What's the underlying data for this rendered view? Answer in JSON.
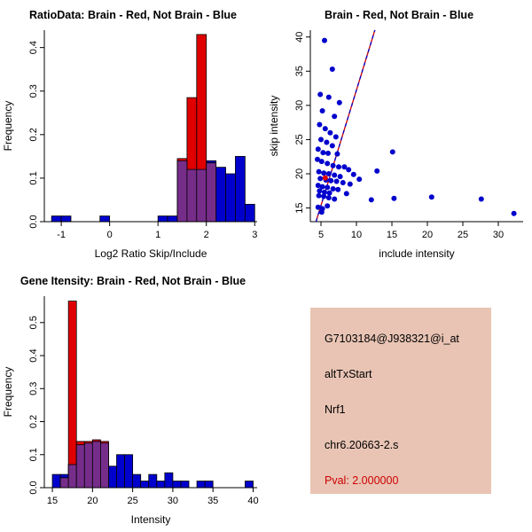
{
  "figure_bg": "#ffffff",
  "colors": {
    "blue": "#0000cd",
    "red": "#e00000",
    "overlap": "#762d8a",
    "line_red": "#cc0000",
    "line_blue": "#0000cd"
  },
  "chart_data": [
    {
      "type": "bar",
      "title": "RatioData: Brain - Red, Not Brain - Blue",
      "xlabel": "Log2 Ratio Skip/Include",
      "ylabel": "Frequency",
      "xlim": [
        -1.35,
        3.05
      ],
      "ylim": [
        0,
        0.44
      ],
      "xtick_vals": [
        -1,
        0,
        1,
        2,
        3
      ],
      "xtick_labels": [
        "-1",
        "0",
        "1",
        "2",
        "3"
      ],
      "ytick_vals": [
        0,
        0.1,
        0.2,
        0.3,
        0.4
      ],
      "ytick_labels": [
        "0.0",
        "0.1",
        "0.2",
        "0.3",
        "0.4"
      ],
      "bins_start": -1.2,
      "bin_width": 0.2,
      "series": [
        {
          "name": "Not Brain",
          "color": "#0000cd",
          "values": [
            0.013,
            0.013,
            0,
            0,
            0,
            0.013,
            0,
            0,
            0,
            0,
            0,
            0.013,
            0.013,
            0.14,
            0.12,
            0.12,
            0.14,
            0.125,
            0.11,
            0.15,
            0.04
          ]
        },
        {
          "name": "Brain",
          "color": "#e00000",
          "values": [
            0,
            0,
            0,
            0,
            0,
            0,
            0,
            0,
            0,
            0,
            0,
            0,
            0,
            0.145,
            0.285,
            0.43,
            0.135,
            0,
            0,
            0,
            0
          ]
        }
      ],
      "overlap_color": "#762d8a",
      "legend": "Brain - Red, Not Brain - Blue",
      "grid": false
    },
    {
      "type": "scatter",
      "title": "Brain - Red, Not Brain - Blue",
      "xlabel": "include intensity",
      "ylabel": "skip intensity",
      "xlim": [
        3.5,
        33.5
      ],
      "ylim": [
        13,
        41
      ],
      "xtick_vals": [
        5,
        10,
        15,
        20,
        25,
        30
      ],
      "xtick_labels": [
        "5",
        "10",
        "15",
        "20",
        "25",
        "30"
      ],
      "ytick_vals": [
        15,
        20,
        25,
        30,
        35,
        40
      ],
      "ytick_labels": [
        "15",
        "20",
        "25",
        "30",
        "35",
        "40"
      ],
      "point_color": "#0000cd",
      "red_point_color": "#e00000",
      "points": [
        [
          5.5,
          39.5
        ],
        [
          6.6,
          35.3
        ],
        [
          4.9,
          31.6
        ],
        [
          6.1,
          31.2
        ],
        [
          7.6,
          30.4
        ],
        [
          5.2,
          29.2
        ],
        [
          6.9,
          28.4
        ],
        [
          4.8,
          27.2
        ],
        [
          5.6,
          26.6
        ],
        [
          6.3,
          26.0
        ],
        [
          7.1,
          25.4
        ],
        [
          5.0,
          25.0
        ],
        [
          5.8,
          24.6
        ],
        [
          6.6,
          24.1
        ],
        [
          4.6,
          23.6
        ],
        [
          5.3,
          23.1
        ],
        [
          6.0,
          23.0
        ],
        [
          7.3,
          22.9
        ],
        [
          15.1,
          23.2
        ],
        [
          4.5,
          22.1
        ],
        [
          5.1,
          21.8
        ],
        [
          5.9,
          21.5
        ],
        [
          6.7,
          21.2
        ],
        [
          7.5,
          21.0
        ],
        [
          8.3,
          21.0
        ],
        [
          12.9,
          20.4
        ],
        [
          4.7,
          20.3
        ],
        [
          5.4,
          20.1
        ],
        [
          6.1,
          20.0
        ],
        [
          6.9,
          19.8
        ],
        [
          7.7,
          19.6
        ],
        [
          9.6,
          19.9
        ],
        [
          8.9,
          20.6
        ],
        [
          4.9,
          19.3
        ],
        [
          5.7,
          19.1
        ],
        [
          6.4,
          19.0
        ],
        [
          7.2,
          18.9
        ],
        [
          8.1,
          18.7
        ],
        [
          9.1,
          18.5
        ],
        [
          10.4,
          19.2
        ],
        [
          4.6,
          18.3
        ],
        [
          5.2,
          18.1
        ],
        [
          5.9,
          18.0
        ],
        [
          6.7,
          17.8
        ],
        [
          7.4,
          17.7
        ],
        [
          4.8,
          17.5
        ],
        [
          5.5,
          17.3
        ],
        [
          6.2,
          17.2
        ],
        [
          8.6,
          17.1
        ],
        [
          4.7,
          16.8
        ],
        [
          5.4,
          16.7
        ],
        [
          6.1,
          16.5
        ],
        [
          6.9,
          16.3
        ],
        [
          12.1,
          16.2
        ],
        [
          15.3,
          16.4
        ],
        [
          20.6,
          16.6
        ],
        [
          27.6,
          16.3
        ],
        [
          4.6,
          15.1
        ],
        [
          5.2,
          14.9
        ],
        [
          5.9,
          15.3
        ],
        [
          5.1,
          14.4
        ],
        [
          32.2,
          14.2
        ]
      ],
      "red_points": [
        [
          5.6,
          19.4
        ]
      ],
      "line": {
        "x1": 4.3,
        "y1": 13,
        "x2": 12.6,
        "y2": 41,
        "color_solid": "#cc0000",
        "color_dashed": "#0000cd"
      },
      "grid": false
    },
    {
      "type": "bar",
      "title": "Gene Itensity: Brain - Red, Not Brain - Blue",
      "xlabel": "Intensity",
      "ylabel": "Frequency",
      "xlim": [
        14,
        40.5
      ],
      "ylim": [
        0,
        0.58
      ],
      "xtick_vals": [
        15,
        20,
        25,
        30,
        35,
        40
      ],
      "xtick_labels": [
        "15",
        "20",
        "25",
        "30",
        "35",
        "40"
      ],
      "ytick_vals": [
        0,
        0.1,
        0.2,
        0.3,
        0.4,
        0.5
      ],
      "ytick_labels": [
        "0.0",
        "0.1",
        "0.2",
        "0.3",
        "0.4",
        "0.5"
      ],
      "bins_start": 15,
      "bin_width": 1,
      "series": [
        {
          "name": "Not Brain",
          "color": "#0000cd",
          "values": [
            0.04,
            0.04,
            0.07,
            0.13,
            0.135,
            0.14,
            0.135,
            0.065,
            0.1,
            0.1,
            0.04,
            0.02,
            0.04,
            0.02,
            0.045,
            0.02,
            0.02,
            0,
            0.02,
            0.02,
            0,
            0,
            0,
            0,
            0.02
          ]
        },
        {
          "name": "Brain",
          "color": "#e00000",
          "values": [
            0,
            0.03,
            0.565,
            0.14,
            0.14,
            0.145,
            0.14,
            0,
            0,
            0,
            0,
            0,
            0,
            0,
            0,
            0,
            0,
            0,
            0,
            0,
            0,
            0,
            0,
            0,
            0
          ]
        }
      ],
      "overlap_color": "#762d8a",
      "legend": "Brain - Red, Not Brain - Blue",
      "grid": false
    }
  ],
  "info_panel": {
    "bg": "#e9c4b4",
    "lines": [
      {
        "text": "G7103184@J938321@i_at",
        "color": "#000000"
      },
      {
        "text": "altTxStart",
        "color": "#000000"
      },
      {
        "text": "Nrf1",
        "color": "#000000"
      },
      {
        "text": "chr6.20663-2.s",
        "color": "#000000"
      },
      {
        "text": "Pval: 2.000000",
        "color": "#cc0000"
      }
    ]
  }
}
